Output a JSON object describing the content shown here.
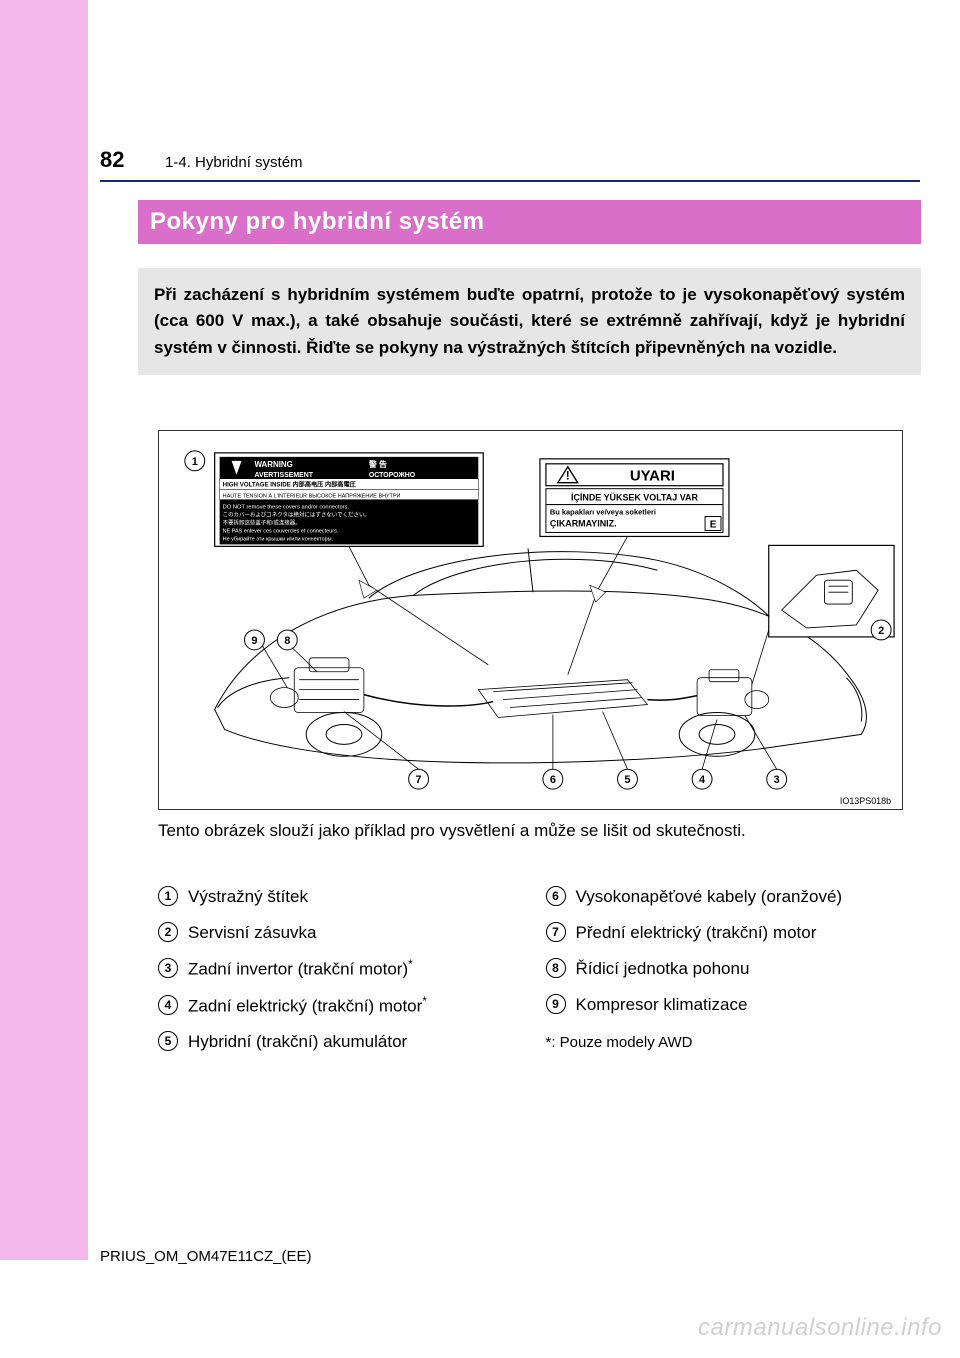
{
  "page": {
    "number": "82",
    "breadcrumb": "1-4. Hybridní systém",
    "heading": "Pokyny pro hybridní systém",
    "intro": "Při zacházení s hybridním systémem buďte opatrní, protože to je vysokonapěťový systém (cca 600 V max.), a také obsahuje součásti, které se extrémně zahřívají, když je hybridní systém v činnosti. Řiďte se pokyny na výstražných štítcích připevněných na vozidle.",
    "caption": "Tento obrázek slouží jako příklad pro vysvětlení a může se lišit od skutečnosti.",
    "doc_code": "PRIUS_OM_OM47E11CZ_(EE)",
    "watermark": "carmanualsonline.info"
  },
  "colors": {
    "sidebar": "#f3b7e9",
    "heading_bg": "#d96fc9",
    "heading_fg": "#ffffff",
    "intro_bg": "#e6e6e6",
    "divider": "#1a2a6c",
    "text": "#000000",
    "watermark": "#d0d0d0"
  },
  "diagram": {
    "figure_code": "IO13PS018b",
    "warning_label": {
      "line1_left": "WARNING",
      "line1_right": "警 告",
      "line2_left": "AVERTISSEMENT",
      "line2_right": "ОСТОРОЖНО",
      "row1": "HIGH VOLTAGE INSIDE   内部高电压   内部高電圧",
      "row2": "HAUTE TENSION À L'INTÉRIEUR   ВЫСОКОЕ НАПРЯЖЕНИЕ ВНУТРИ",
      "row3": "DO NOT remove these covers and/or connectors.",
      "row4": "このカバーおよびコネクタは絶対にはずさないでください。",
      "row5": "不要拆卸这些盖子和/或连接器。",
      "row6": "NE PAS enlever ces couvercles et connecteurs.",
      "row7": "Не убирайте эти крышки и/или коннекторы."
    },
    "uyari_label": {
      "title": "UYARI",
      "line1": "İÇİNDE YÜKSEK VOLTAJ VAR",
      "line2": "Bu kapakları ve/veya soketleri",
      "line3": "ÇIKARMAYINIZ.",
      "e": "E"
    },
    "callouts": [
      "1",
      "2",
      "3",
      "4",
      "5",
      "6",
      "7",
      "8",
      "9"
    ]
  },
  "legend_left": [
    {
      "n": "1",
      "text": "Výstražný štítek",
      "star": false
    },
    {
      "n": "2",
      "text": "Servisní zásuvka",
      "star": false
    },
    {
      "n": "3",
      "text": "Zadní invertor (trakční motor)",
      "star": true
    },
    {
      "n": "4",
      "text": "Zadní elektrický (trakční) motor",
      "star": true
    },
    {
      "n": "5",
      "text": "Hybridní (trakční) akumulátor",
      "star": false
    }
  ],
  "legend_right": [
    {
      "n": "6",
      "text": "Vysokonapěťové kabely (oranžové)",
      "star": false
    },
    {
      "n": "7",
      "text": "Přední elektrický (trakční) motor",
      "star": false
    },
    {
      "n": "8",
      "text": "Řídicí jednotka pohonu",
      "star": false
    },
    {
      "n": "9",
      "text": "Kompresor klimatizace",
      "star": false
    }
  ],
  "footnote": "*: Pouze modely AWD"
}
